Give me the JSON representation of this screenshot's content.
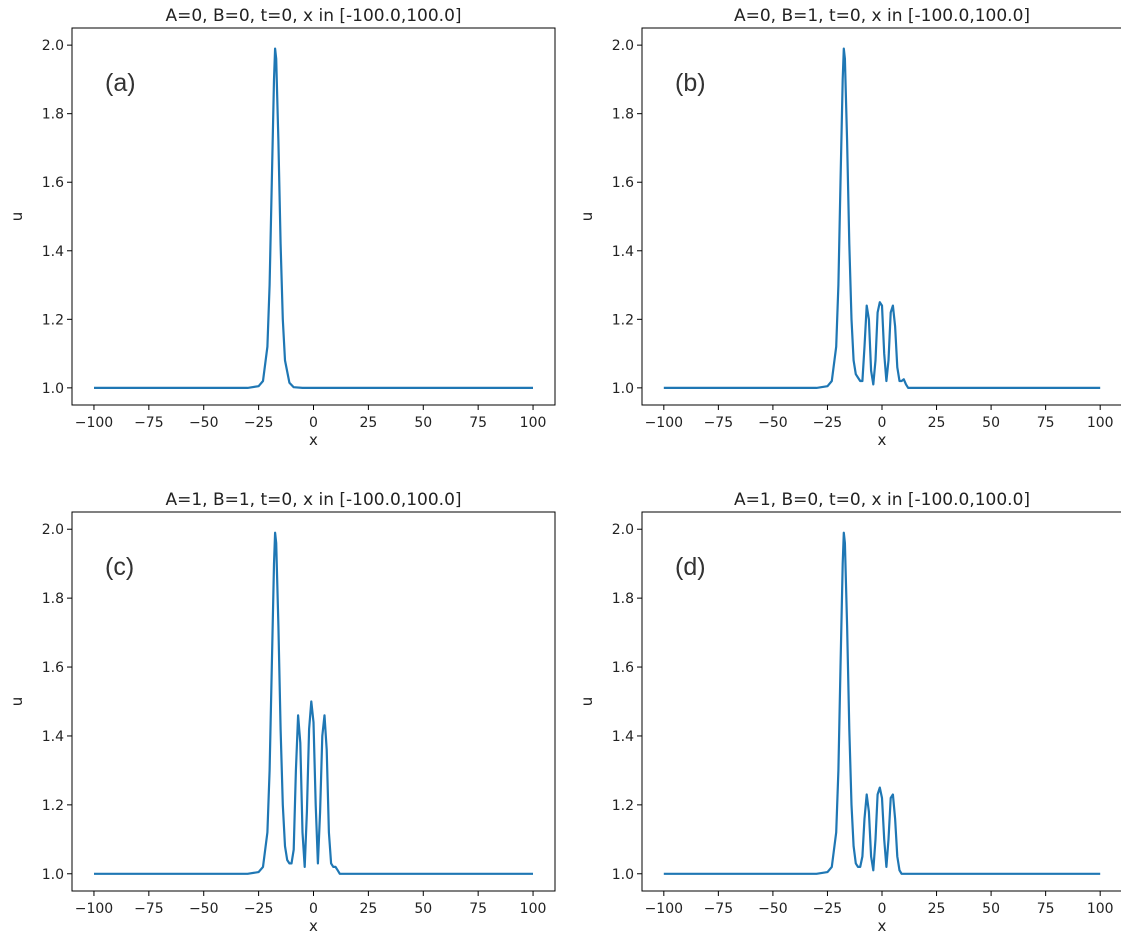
{
  "chart_data": [
    {
      "type": "line",
      "title": "A=0, B=0, t=0, x in [-100.0,100.0]",
      "panel_label": "(a)",
      "xlabel": "x",
      "ylabel": "u",
      "xlim": [
        -100,
        100
      ],
      "ylim": [
        1.0,
        2.0
      ],
      "xticks": [
        -100,
        -75,
        -50,
        -25,
        0,
        25,
        50,
        75,
        100
      ],
      "yticks": [
        1.0,
        1.2,
        1.4,
        1.6,
        1.8,
        2.0
      ],
      "series": [
        {
          "x": [
            -100,
            -60,
            -30,
            -25,
            -23,
            -21,
            -20,
            -19,
            -18,
            -17.5,
            -17,
            -16,
            -15,
            -14,
            -13,
            -11,
            -9,
            -5,
            0,
            20,
            60,
            100
          ],
          "y": [
            1.0,
            1.0,
            1.0,
            1.005,
            1.02,
            1.12,
            1.3,
            1.6,
            1.9,
            1.99,
            1.96,
            1.72,
            1.42,
            1.2,
            1.08,
            1.015,
            1.002,
            1.0,
            1.0,
            1.0,
            1.0,
            1.0
          ]
        }
      ]
    },
    {
      "type": "line",
      "title": "A=0, B=1, t=0, x in [-100.0,100.0]",
      "panel_label": "(b)",
      "xlabel": "x",
      "ylabel": "u",
      "xlim": [
        -100,
        100
      ],
      "ylim": [
        1.0,
        2.0
      ],
      "xticks": [
        -100,
        -75,
        -50,
        -25,
        0,
        25,
        50,
        75,
        100
      ],
      "yticks": [
        1.0,
        1.2,
        1.4,
        1.6,
        1.8,
        2.0
      ],
      "series": [
        {
          "x": [
            -100,
            -60,
            -30,
            -25,
            -23,
            -21,
            -20,
            -19,
            -18,
            -17.5,
            -17,
            -16,
            -15,
            -14,
            -13,
            -12,
            -11,
            -10,
            -9,
            -8,
            -7,
            -6,
            -5,
            -4,
            -3,
            -2,
            -1,
            0,
            1,
            2,
            3,
            4,
            5,
            6,
            7,
            8,
            9,
            10,
            11,
            12,
            20,
            60,
            100
          ],
          "y": [
            1.0,
            1.0,
            1.0,
            1.005,
            1.02,
            1.12,
            1.3,
            1.6,
            1.9,
            1.99,
            1.96,
            1.72,
            1.42,
            1.2,
            1.08,
            1.04,
            1.03,
            1.02,
            1.02,
            1.12,
            1.24,
            1.2,
            1.05,
            1.01,
            1.08,
            1.22,
            1.25,
            1.24,
            1.1,
            1.02,
            1.08,
            1.22,
            1.24,
            1.18,
            1.06,
            1.02,
            1.02,
            1.025,
            1.01,
            1.0,
            1.0,
            1.0,
            1.0
          ]
        }
      ]
    },
    {
      "type": "line",
      "title": "A=1, B=1, t=0, x in [-100.0,100.0]",
      "panel_label": "(c)",
      "xlabel": "x",
      "ylabel": "u",
      "xlim": [
        -100,
        100
      ],
      "ylim": [
        1.0,
        2.0
      ],
      "xticks": [
        -100,
        -75,
        -50,
        -25,
        0,
        25,
        50,
        75,
        100
      ],
      "yticks": [
        1.0,
        1.2,
        1.4,
        1.6,
        1.8,
        2.0
      ],
      "series": [
        {
          "x": [
            -100,
            -60,
            -30,
            -25,
            -23,
            -21,
            -20,
            -19,
            -18,
            -17.5,
            -17,
            -16,
            -15,
            -14,
            -13,
            -12,
            -11,
            -10,
            -9,
            -8,
            -7,
            -6,
            -5,
            -4,
            -3,
            -2,
            -1,
            0,
            1,
            2,
            3,
            4,
            5,
            6,
            7,
            8,
            9,
            10,
            11,
            12,
            20,
            60,
            100
          ],
          "y": [
            1.0,
            1.0,
            1.0,
            1.005,
            1.02,
            1.12,
            1.3,
            1.6,
            1.9,
            1.99,
            1.96,
            1.72,
            1.42,
            1.2,
            1.08,
            1.04,
            1.03,
            1.03,
            1.07,
            1.3,
            1.46,
            1.38,
            1.12,
            1.02,
            1.18,
            1.42,
            1.5,
            1.44,
            1.2,
            1.03,
            1.18,
            1.4,
            1.46,
            1.36,
            1.12,
            1.03,
            1.02,
            1.02,
            1.01,
            1.0,
            1.0,
            1.0,
            1.0
          ]
        }
      ]
    },
    {
      "type": "line",
      "title": "A=1, B=0, t=0, x in [-100.0,100.0]",
      "panel_label": "(d)",
      "xlabel": "x",
      "ylabel": "u",
      "xlim": [
        -100,
        100
      ],
      "ylim": [
        1.0,
        2.0
      ],
      "xticks": [
        -100,
        -75,
        -50,
        -25,
        0,
        25,
        50,
        75,
        100
      ],
      "yticks": [
        1.0,
        1.2,
        1.4,
        1.6,
        1.8,
        2.0
      ],
      "series": [
        {
          "x": [
            -100,
            -60,
            -30,
            -25,
            -23,
            -21,
            -20,
            -19,
            -18,
            -17.5,
            -17,
            -16,
            -15,
            -14,
            -13,
            -12,
            -11,
            -10,
            -9,
            -8,
            -7,
            -6,
            -5,
            -4,
            -3,
            -2,
            -1,
            0,
            1,
            2,
            3,
            4,
            5,
            6,
            7,
            8,
            9,
            10,
            11,
            12,
            20,
            60,
            100
          ],
          "y": [
            1.0,
            1.0,
            1.0,
            1.005,
            1.02,
            1.12,
            1.3,
            1.6,
            1.9,
            1.99,
            1.96,
            1.72,
            1.42,
            1.2,
            1.08,
            1.03,
            1.02,
            1.02,
            1.05,
            1.16,
            1.23,
            1.18,
            1.05,
            1.01,
            1.1,
            1.23,
            1.25,
            1.22,
            1.1,
            1.02,
            1.1,
            1.22,
            1.23,
            1.16,
            1.05,
            1.01,
            1.0,
            1.0,
            1.0,
            1.0,
            1.0,
            1.0,
            1.0
          ]
        }
      ]
    }
  ]
}
